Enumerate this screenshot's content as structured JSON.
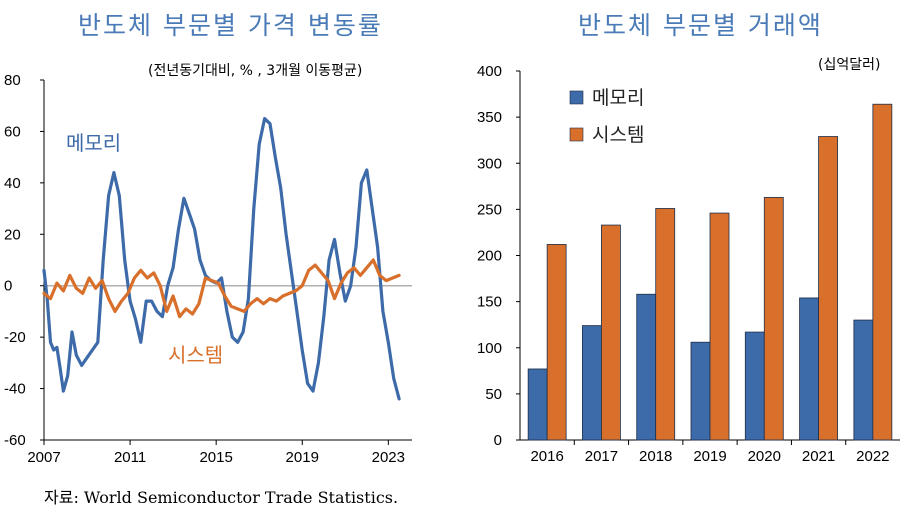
{
  "charts_meta": {
    "left_title": "반도체 부문별 가격 변동률",
    "right_title": "반도체 부문별 거래액",
    "source": "자료: World Semiconductor Trade Statistics."
  },
  "colors": {
    "memory": "#3d6aa8",
    "system": "#d8702c",
    "title": "#4a7bb7",
    "zero": "#b0b0b0"
  },
  "chart_data": [
    {
      "type": "line",
      "title": "반도체 부문별 가격 변동률",
      "unit_label": "(전년동기대비, % , 3개월 이동평균)",
      "xlim": [
        2007,
        2024.1
      ],
      "ylim": [
        -60,
        80
      ],
      "x_ticks": [
        2007,
        2011,
        2015,
        2019,
        2023
      ],
      "y_ticks": [
        -60,
        -40,
        -20,
        0,
        20,
        40,
        60,
        80
      ],
      "series": [
        {
          "name": "메모리",
          "x": [
            2007.0,
            2007.15,
            2007.3,
            2007.45,
            2007.6,
            2007.75,
            2007.9,
            2008.1,
            2008.3,
            2008.5,
            2008.75,
            2009.0,
            2009.25,
            2009.5,
            2009.75,
            2010.0,
            2010.25,
            2010.5,
            2010.75,
            2011.0,
            2011.25,
            2011.5,
            2011.75,
            2012.0,
            2012.25,
            2012.5,
            2012.75,
            2013.0,
            2013.25,
            2013.5,
            2013.75,
            2014.0,
            2014.25,
            2014.5,
            2014.75,
            2015.0,
            2015.25,
            2015.5,
            2015.75,
            2016.0,
            2016.25,
            2016.5,
            2016.75,
            2017.0,
            2017.25,
            2017.5,
            2017.75,
            2018.0,
            2018.25,
            2018.5,
            2018.75,
            2019.0,
            2019.25,
            2019.5,
            2019.75,
            2020.0,
            2020.25,
            2020.5,
            2020.75,
            2021.0,
            2021.25,
            2021.5,
            2021.75,
            2022.0,
            2022.25,
            2022.5,
            2022.75,
            2023.0,
            2023.25,
            2023.5
          ],
          "values": [
            6,
            -5,
            -22,
            -25,
            -24,
            -32,
            -41,
            -35,
            -18,
            -27,
            -31,
            -28,
            -25,
            -22,
            10,
            35,
            44,
            35,
            10,
            -6,
            -13,
            -22,
            -6,
            -6,
            -10,
            -12,
            0,
            7,
            22,
            34,
            28,
            22,
            10,
            4,
            2,
            1,
            3,
            -10,
            -20,
            -22,
            -18,
            -5,
            30,
            55,
            65,
            63,
            50,
            38,
            20,
            5,
            -10,
            -25,
            -38,
            -41,
            -30,
            -12,
            10,
            18,
            5,
            -6,
            0,
            15,
            40,
            45,
            30,
            15,
            -10,
            -22,
            -36,
            -44
          ]
        },
        {
          "name": "시스템",
          "x": [
            2007.0,
            2007.3,
            2007.6,
            2007.9,
            2008.2,
            2008.5,
            2008.8,
            2009.1,
            2009.4,
            2009.7,
            2010.0,
            2010.3,
            2010.6,
            2010.9,
            2011.2,
            2011.5,
            2011.8,
            2012.1,
            2012.4,
            2012.7,
            2013.0,
            2013.3,
            2013.6,
            2013.9,
            2014.2,
            2014.5,
            2014.8,
            2015.1,
            2015.4,
            2015.7,
            2016.0,
            2016.3,
            2016.6,
            2016.9,
            2017.2,
            2017.5,
            2017.8,
            2018.1,
            2018.4,
            2018.7,
            2019.0,
            2019.3,
            2019.6,
            2019.9,
            2020.2,
            2020.5,
            2020.8,
            2021.1,
            2021.4,
            2021.7,
            2022.0,
            2022.3,
            2022.6,
            2022.9,
            2023.2,
            2023.5
          ],
          "values": [
            -3,
            -5,
            1,
            -2,
            4,
            -1,
            -3,
            3,
            -1,
            2,
            -5,
            -10,
            -6,
            -3,
            3,
            6,
            3,
            5,
            0,
            -10,
            -4,
            -12,
            -9,
            -11,
            -7,
            3,
            2,
            1,
            -4,
            -8,
            -9,
            -10,
            -7,
            -5,
            -7,
            -5,
            -6,
            -4,
            -3,
            -2,
            0,
            6,
            8,
            5,
            2,
            -5,
            1,
            5,
            7,
            4,
            7,
            10,
            4,
            2,
            3,
            4
          ]
        }
      ],
      "labels": {
        "memory": "메모리",
        "system": "시스템"
      }
    },
    {
      "type": "bar",
      "title": "반도체 부문별 거래액",
      "unit_label": "(십억달러)",
      "categories": [
        "2016",
        "2017",
        "2018",
        "2019",
        "2020",
        "2021",
        "2022"
      ],
      "ylim": [
        0,
        400
      ],
      "y_ticks": [
        0,
        50,
        100,
        150,
        200,
        250,
        300,
        350,
        400
      ],
      "series": [
        {
          "name": "메모리",
          "values": [
            77,
            124,
            158,
            106,
            117,
            154,
            130
          ]
        },
        {
          "name": "시스템",
          "values": [
            212,
            233,
            251,
            246,
            263,
            329,
            364
          ]
        }
      ]
    }
  ]
}
